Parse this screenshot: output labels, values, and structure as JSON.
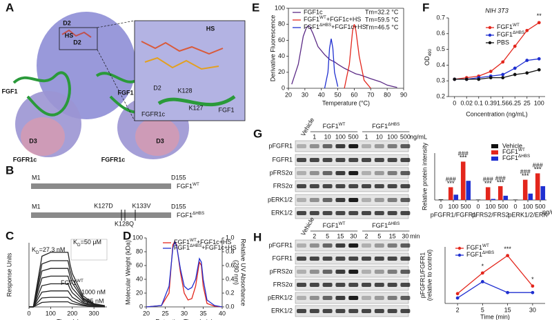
{
  "panels": [
    "A",
    "B",
    "C",
    "D",
    "E",
    "F",
    "G",
    "H"
  ],
  "structure": {
    "labels": [
      "D2",
      "D2",
      "HS",
      "FGF1",
      "FGF1",
      "D3",
      "D3",
      "FGFR1c",
      "FGFR1c"
    ],
    "inset_labels": [
      "HS",
      "D2",
      "K128",
      "K127",
      "FGFR1c",
      "FGF1"
    ]
  },
  "constructs": [
    {
      "start": "M1",
      "end": "D155",
      "name": {
        "text": "FGF1",
        "sup": "WT"
      }
    },
    {
      "start": "M1",
      "end": "D155",
      "name": {
        "text": "FGF1",
        "sup": "ΔHBS"
      },
      "mutations": [
        "K127D",
        "K133V",
        "K128Q"
      ]
    }
  ],
  "blots": [
    {
      "control": "Vehicle",
      "groups": [
        {
          "text": "FGF1",
          "sup": "WT"
        },
        {
          "text": "FGF1",
          "sup": "ΔHBS"
        }
      ],
      "lanes": [
        "1",
        "10",
        "100",
        "500",
        "1",
        "10",
        "100",
        "500"
      ],
      "unit": "ng/mL",
      "rows": [
        "pFGFR1",
        "FGFR1",
        "pFRS2α",
        "FRS2α",
        "pERK1/2",
        "ERK1/2"
      ]
    },
    {
      "control": "Vehicle",
      "groups": [
        {
          "text": "FGF1",
          "sup": "WT"
        },
        {
          "text": "FGF1",
          "sup": "ΔHBS"
        }
      ],
      "lanes": [
        "2",
        "5",
        "15",
        "30",
        "2",
        "5",
        "15",
        "30"
      ],
      "unit": "min",
      "rows": [
        "pFGFR1",
        "FGFR1",
        "pFRS2α",
        "FRS2α",
        "pERK1/2",
        "ERK1/2"
      ]
    }
  ],
  "chart_data": [
    {
      "type": "line",
      "xlabel": "Time (s)",
      "ylabel": "Response Units",
      "kd_label": {
        "text": "K",
        "sub": "D",
        "rest": "=27.3 nM"
      },
      "inset_label": {
        "text": "K",
        "sub": "D",
        "rest": "=50 μM"
      },
      "series_label": {
        "text": "FGF1",
        "sup": "WT"
      },
      "conc_labels": [
        "1000 nM",
        "4.25 nM"
      ],
      "xlim": [
        0,
        360
      ],
      "xticks": [
        0,
        100,
        200,
        300
      ],
      "ylim": [
        0,
        100
      ],
      "x": [
        0,
        10,
        20,
        60,
        100,
        140,
        180,
        190,
        200,
        250,
        300,
        350
      ],
      "series": [
        {
          "color": "#222222",
          "values": [
            0,
            0,
            0,
            79,
            85,
            85,
            85,
            66,
            52,
            17,
            5,
            2
          ]
        },
        {
          "color": "#222222",
          "values": [
            0,
            0,
            0,
            67,
            72,
            72,
            72,
            56,
            44,
            14,
            4,
            1
          ]
        },
        {
          "color": "#222222",
          "values": [
            0,
            0,
            0,
            56,
            60,
            60,
            60,
            47,
            37,
            12,
            4,
            1
          ]
        },
        {
          "color": "#222222",
          "values": [
            0,
            0,
            0,
            45,
            48,
            48,
            48,
            37,
            29,
            10,
            3,
            1
          ]
        },
        {
          "color": "#222222",
          "values": [
            0,
            0,
            0,
            33,
            36,
            36,
            36,
            28,
            22,
            7,
            2,
            1
          ]
        },
        {
          "color": "#222222",
          "values": [
            0,
            0,
            0,
            23,
            25,
            25,
            25,
            20,
            15,
            5,
            2,
            0
          ]
        },
        {
          "color": "#222222",
          "values": [
            0,
            0,
            0,
            14,
            15,
            15,
            15,
            12,
            9,
            3,
            1,
            0
          ]
        },
        {
          "color": "#222222",
          "values": [
            0,
            0,
            0,
            7,
            8,
            8,
            8,
            6,
            5,
            2,
            0,
            0
          ]
        }
      ]
    },
    {
      "type": "line",
      "xlabel": "Retention Time (min)",
      "ylabel": "Molecular Weight (kDa)",
      "y2label": [
        "Relative UV Absorbance",
        "(280 nm)"
      ],
      "xlim": [
        20,
        40
      ],
      "xticks": [
        20,
        25,
        30,
        35,
        40
      ],
      "ylim": [
        0,
        100
      ],
      "yticks": [
        0,
        20,
        40,
        60,
        80,
        100
      ],
      "y2lim": [
        0,
        1
      ],
      "y2ticks": [
        {
          "value": 0,
          "label": "0.0"
        },
        0.2,
        0.4,
        0.6,
        0.8,
        {
          "value": 1,
          "label": "1.0"
        }
      ],
      "x": [
        20,
        24,
        26,
        27,
        27.5,
        28,
        29,
        30,
        31,
        32,
        33,
        34,
        34.5,
        35,
        36,
        38,
        40
      ],
      "series": [
        {
          "name": {
            "text": "FGF1",
            "sup": "WT",
            "rest": "+FGF1c+HS"
          },
          "color": "#e3261c",
          "axis": "y2",
          "values": [
            0,
            0.02,
            0.2,
            0.9,
            0.95,
            0.9,
            0.5,
            0.2,
            0.1,
            0.12,
            0.3,
            0.65,
            0.6,
            0.3,
            0.05,
            0.01,
            0
          ]
        },
        {
          "name": {
            "text": "FGF1",
            "sup": "ΔHBS",
            "rest": "+FGF1c+HS"
          },
          "color": "#1f2fd0",
          "axis": "y2",
          "values": [
            0,
            0.02,
            0.3,
            0.85,
            0.95,
            0.88,
            0.55,
            0.3,
            0.25,
            0.28,
            0.4,
            0.7,
            0.65,
            0.4,
            0.1,
            0.02,
            0
          ]
        }
      ]
    },
    {
      "type": "line",
      "xlabel": "Temperature (°C)",
      "ylabel": "Derivative Fluorescence",
      "xlim": [
        20,
        90
      ],
      "xticks": [
        20,
        30,
        40,
        50,
        60,
        70,
        80,
        90
      ],
      "ylim": [
        0,
        100
      ],
      "yticks": [
        0,
        20,
        40,
        60,
        80,
        100
      ],
      "x": [
        22,
        26,
        29,
        31,
        32,
        33,
        35,
        38,
        42,
        44,
        45,
        46,
        47,
        48,
        50,
        54,
        57,
        59,
        60,
        61,
        63,
        66,
        70,
        76,
        80,
        84,
        86
      ],
      "series": [
        {
          "name": "FGF1c",
          "tm": "Tm=32.2 °C",
          "color": "#5b2a86",
          "values": [
            5,
            30,
            65,
            76,
            78,
            77,
            68,
            52,
            42,
            38,
            36,
            35,
            34,
            33,
            30,
            25,
            22,
            20,
            19,
            18,
            17,
            15,
            12,
            8,
            4,
            2,
            1
          ]
        },
        {
          "name": {
            "text": "FGF1",
            "sup": "WT",
            "rest": "+FGF1c+HS"
          },
          "tm": "Tm=59.5 °C",
          "color": "#e3261c",
          "values": [
            null,
            null,
            null,
            null,
            null,
            null,
            null,
            null,
            null,
            null,
            null,
            null,
            null,
            null,
            null,
            0,
            30,
            72,
            80,
            72,
            40,
            10,
            0,
            null,
            null,
            null,
            null
          ]
        },
        {
          "name": {
            "text": "FGF1",
            "sup": "ΔHBS",
            "rest": "+FGF1c+HS"
          },
          "tm": "Tm=46.5 °C",
          "color": "#1f2fd0",
          "values": [
            null,
            null,
            null,
            null,
            null,
            null,
            null,
            null,
            0,
            20,
            50,
            62,
            50,
            20,
            2,
            null,
            null,
            null,
            null,
            null,
            null,
            null,
            null,
            null,
            null,
            null,
            null
          ]
        }
      ]
    },
    {
      "type": "line",
      "title": "NIH 3T3",
      "xlabel": "Concentration (ng/mL)",
      "ylabel": {
        "text": "OD",
        "sub": "490"
      },
      "markers": true,
      "categories": [
        "0",
        "0.02",
        "0.1",
        "0.39",
        "1.56",
        "6.25",
        "25",
        "100"
      ],
      "ylim": [
        0.2,
        0.7
      ],
      "yticks": [
        0.2,
        0.3,
        0.4,
        0.5,
        0.6,
        0.7
      ],
      "series": [
        {
          "name": {
            "text": "FGF1",
            "sup": "WT"
          },
          "color": "#e3261c",
          "values": [
            0.31,
            0.32,
            0.33,
            0.36,
            0.42,
            0.52,
            0.62,
            0.67
          ]
        },
        {
          "name": {
            "text": "FGF1",
            "sup": "ΔHBS"
          },
          "color": "#1f2fd0",
          "values": [
            0.31,
            0.31,
            0.32,
            0.33,
            0.34,
            0.38,
            0.43,
            0.44
          ]
        },
        {
          "name": "PBS",
          "color": "#111111",
          "values": [
            0.31,
            0.31,
            0.31,
            0.32,
            0.32,
            0.34,
            0.35,
            0.37
          ]
        }
      ],
      "annotations": [
        {
          "text": "**",
          "x": "100"
        }
      ]
    },
    {
      "type": "bar",
      "ylabel": "Relative protein intensity",
      "unit": "ng/mL",
      "groups": [
        "pFGFR1/FGFR1",
        "pFRS2/FRS2",
        "pERK1/2/ERK"
      ],
      "significance": [
        "***",
        "###"
      ],
      "categories": [
        "0",
        "100",
        "500",
        "0",
        "100",
        "500",
        "0",
        "100",
        "500"
      ],
      "ylim": [
        0,
        2.2
      ],
      "series": [
        {
          "name": "Vehicle",
          "color": "#111111",
          "values": [
            0.03,
            null,
            null,
            0.02,
            null,
            null,
            0.02,
            null,
            null
          ]
        },
        {
          "name": {
            "text": "FGF1",
            "sup": "WT"
          },
          "color": "#e3261c",
          "values": [
            null,
            0.6,
            1.8,
            null,
            0.6,
            0.65,
            null,
            0.95,
            1.25
          ]
        },
        {
          "name": {
            "text": "FGF1",
            "sup": "ΔHBS"
          },
          "color": "#1f2fd0",
          "values": [
            null,
            0.25,
            0.9,
            null,
            0.05,
            0.2,
            null,
            0.3,
            0.65
          ]
        }
      ]
    },
    {
      "type": "line",
      "xlabel": "Time (min)",
      "ylabel": [
        "pFGFR1/FGFR1",
        "(relative to control)"
      ],
      "markers": true,
      "categories": [
        "2",
        "5",
        "15",
        "30"
      ],
      "ylim": [
        0,
        2.6
      ],
      "series": [
        {
          "name": {
            "text": "FGF1",
            "sup": "WT"
          },
          "color": "#e3261c",
          "values": [
            0.45,
            1.4,
            2.2,
            0.8
          ]
        },
        {
          "name": {
            "text": "FGF1",
            "sup": "ΔHBS"
          },
          "color": "#1f2fd0",
          "values": [
            0.25,
            1.0,
            0.5,
            0.5
          ]
        }
      ],
      "annotations": [
        {
          "text": "*",
          "x": "5"
        },
        {
          "text": "***",
          "x": "15"
        },
        {
          "text": "*",
          "x": "30"
        }
      ]
    }
  ]
}
